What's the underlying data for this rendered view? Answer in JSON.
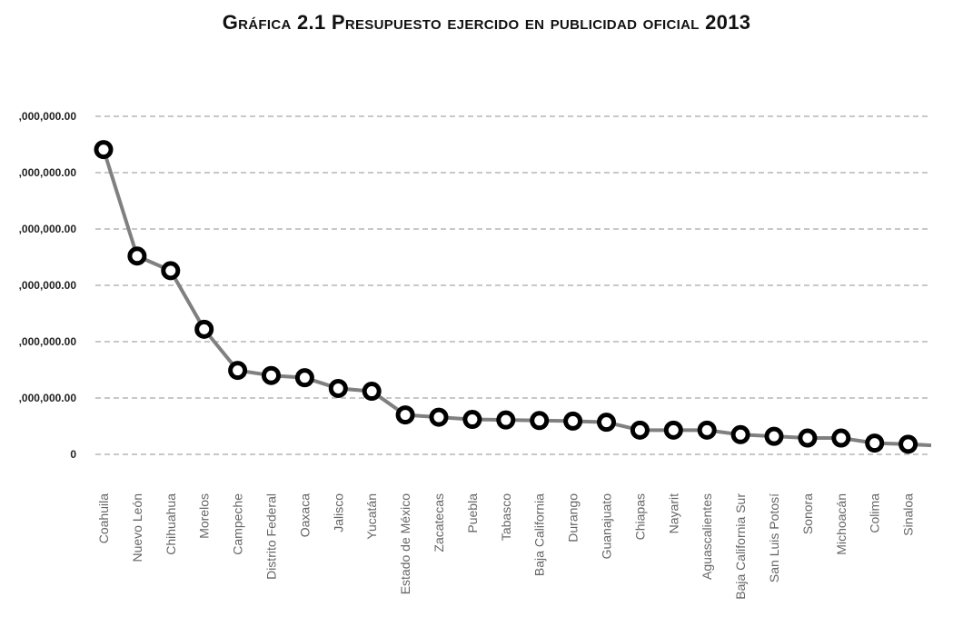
{
  "chart_data": {
    "type": "line",
    "title": "Gráfica 2.1 Presupuesto ejercido en publicidad oficial 2013",
    "xlabel": "",
    "ylabel": "",
    "y_tick_labels": [
      "0",
      ",000,000.00",
      ",000,000.00",
      ",000,000.00",
      ",000,000.00",
      ",000,000.00",
      ",000,000.00"
    ],
    "ylim": [
      0,
      6
    ],
    "grid": true,
    "legend": "none",
    "line_color": "#808080",
    "marker_color": "#000000",
    "categories": [
      "Coahuila",
      "Nuevo León",
      "Chihuahua",
      "Morelos",
      "Campeche",
      "Distrito Federal",
      "Oaxaca",
      "Jalisco",
      "Yucatán",
      "Estado de México",
      "Zacatecas",
      "Puebla",
      "Tabasco",
      "Baja California",
      "Durango",
      "Guanajuato",
      "Chiapas",
      "Nayarit",
      "Aguascalientes",
      "Baja California Sur",
      "San Luis Potosí",
      "Sonora",
      "Michoacán",
      "Colima",
      "Sinaloa"
    ],
    "values": [
      5.41,
      3.52,
      3.26,
      2.22,
      1.49,
      1.4,
      1.36,
      1.17,
      1.12,
      0.7,
      0.66,
      0.62,
      0.61,
      0.6,
      0.59,
      0.57,
      0.43,
      0.43,
      0.43,
      0.35,
      0.32,
      0.29,
      0.29,
      0.2,
      0.18
    ],
    "trailing_value": 0.16
  }
}
